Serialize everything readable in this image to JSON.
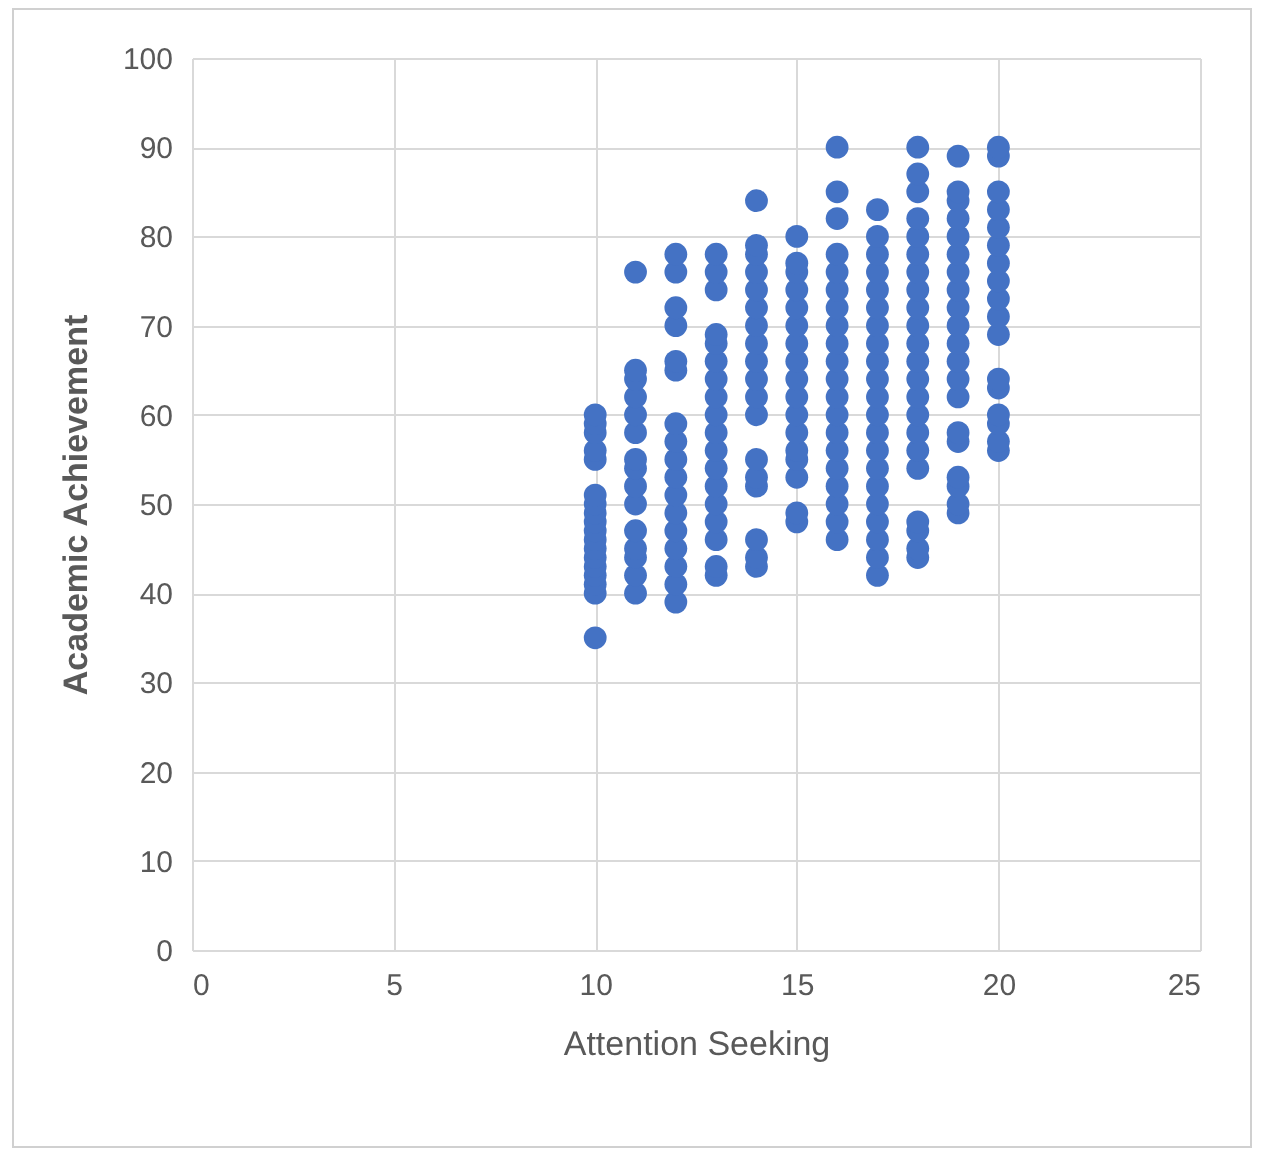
{
  "chart_data": {
    "type": "scatter",
    "xlabel": "Attention Seeking",
    "ylabel": "Academic Achievement",
    "xlim": [
      0,
      25
    ],
    "xticks": [
      0,
      5,
      10,
      15,
      20,
      25
    ],
    "ylim": [
      0,
      100
    ],
    "yticks": [
      0,
      10,
      20,
      30,
      40,
      50,
      60,
      70,
      80,
      90,
      100
    ],
    "grid": true,
    "marker": "circle",
    "legend": false,
    "series": [
      {
        "color": "#4472c4",
        "x": [
          10,
          10,
          10,
          10,
          10,
          10,
          10,
          10,
          10,
          10,
          10,
          10,
          10,
          10,
          10,
          10,
          10,
          10,
          11,
          11,
          11,
          11,
          11,
          11,
          11,
          11,
          11,
          11,
          11,
          11,
          11,
          11,
          11,
          12,
          12,
          12,
          12,
          12,
          12,
          12,
          12,
          12,
          12,
          12,
          12,
          12,
          12,
          12,
          12,
          12,
          13,
          13,
          13,
          13,
          13,
          13,
          13,
          13,
          13,
          13,
          13,
          13,
          13,
          13,
          13,
          13,
          13,
          13,
          14,
          14,
          14,
          14,
          14,
          14,
          14,
          14,
          14,
          14,
          14,
          14,
          14,
          14,
          14,
          14,
          14,
          14,
          15,
          15,
          15,
          15,
          15,
          15,
          15,
          15,
          15,
          15,
          15,
          15,
          15,
          15,
          15,
          15,
          15,
          16,
          16,
          16,
          16,
          16,
          16,
          16,
          16,
          16,
          16,
          16,
          16,
          16,
          16,
          16,
          16,
          16,
          16,
          16,
          16,
          17,
          17,
          17,
          17,
          17,
          17,
          17,
          17,
          17,
          17,
          17,
          17,
          17,
          17,
          17,
          17,
          17,
          17,
          17,
          17,
          17,
          18,
          18,
          18,
          18,
          18,
          18,
          18,
          18,
          18,
          18,
          18,
          18,
          18,
          18,
          18,
          18,
          18,
          18,
          18,
          18,
          18,
          18,
          19,
          19,
          19,
          19,
          19,
          19,
          19,
          19,
          19,
          19,
          19,
          19,
          19,
          19,
          19,
          19,
          19,
          19,
          19,
          19,
          20,
          20,
          20,
          20,
          20,
          20,
          20,
          20,
          20,
          20,
          20,
          20,
          20,
          20,
          20,
          20,
          20
        ],
        "values": [
          35,
          40,
          41,
          42,
          43,
          44,
          45,
          46,
          47,
          48,
          49,
          50,
          51,
          55,
          56,
          58,
          59,
          60,
          40,
          42,
          44,
          45,
          47,
          50,
          52,
          54,
          55,
          58,
          60,
          62,
          64,
          65,
          76,
          39,
          41,
          43,
          45,
          47,
          49,
          51,
          53,
          55,
          57,
          59,
          65,
          66,
          70,
          72,
          76,
          78,
          42,
          43,
          46,
          48,
          50,
          52,
          54,
          56,
          58,
          60,
          62,
          64,
          66,
          68,
          69,
          74,
          76,
          78,
          43,
          44,
          46,
          52,
          53,
          55,
          60,
          62,
          64,
          66,
          68,
          70,
          72,
          74,
          76,
          78,
          79,
          84,
          48,
          49,
          53,
          55,
          56,
          58,
          60,
          62,
          64,
          66,
          68,
          70,
          72,
          74,
          76,
          77,
          80,
          46,
          48,
          50,
          52,
          54,
          56,
          58,
          60,
          62,
          64,
          66,
          68,
          70,
          72,
          74,
          76,
          78,
          82,
          85,
          90,
          42,
          44,
          46,
          48,
          50,
          52,
          54,
          56,
          58,
          60,
          62,
          64,
          66,
          68,
          70,
          72,
          74,
          76,
          78,
          80,
          83,
          44,
          45,
          47,
          48,
          54,
          56,
          58,
          60,
          62,
          64,
          66,
          68,
          70,
          72,
          74,
          76,
          78,
          80,
          82,
          85,
          87,
          90,
          49,
          50,
          52,
          53,
          57,
          58,
          62,
          64,
          66,
          68,
          70,
          72,
          74,
          76,
          78,
          80,
          82,
          84,
          85,
          89,
          56,
          57,
          59,
          60,
          63,
          64,
          69,
          71,
          73,
          75,
          77,
          79,
          81,
          83,
          85,
          89,
          90
        ]
      }
    ]
  }
}
